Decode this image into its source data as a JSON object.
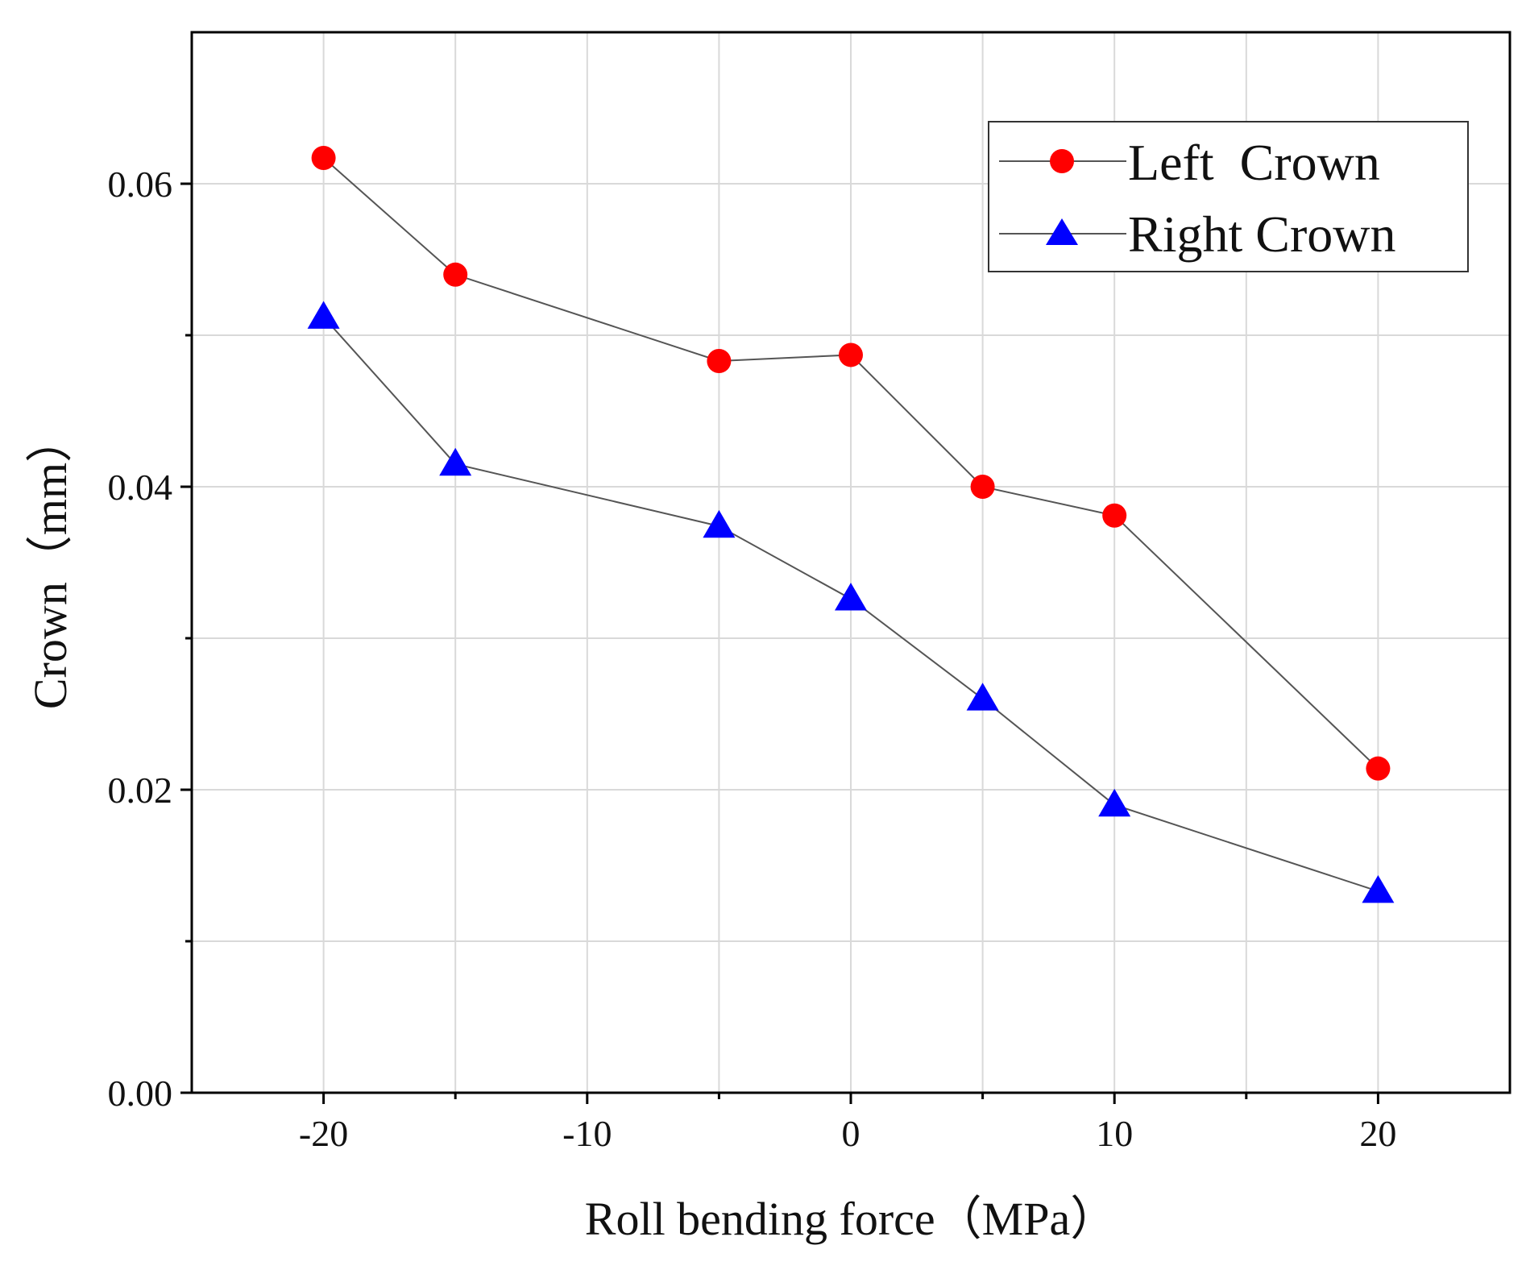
{
  "chart_data": {
    "type": "line",
    "xlabel": "Roll bending force（MPa）",
    "ylabel": "Crown（mm）",
    "xlim": [
      -25,
      25
    ],
    "ylim": [
      0,
      0.07
    ],
    "xticks": [
      -20,
      -10,
      0,
      10,
      20
    ],
    "xtick_labels": [
      "-20",
      "-10",
      "0",
      "10",
      "20"
    ],
    "xminor": [
      -15,
      -5,
      5,
      15
    ],
    "yticks": [
      0,
      0.02,
      0.04,
      0.06
    ],
    "ytick_labels": [
      "0.00",
      "0.02",
      "0.04",
      "0.06"
    ],
    "yminor": [
      0.01,
      0.03,
      0.05
    ],
    "grid": true,
    "legend_position": "top-right",
    "series": [
      {
        "name": "Left  Crown",
        "marker": "circle",
        "color": "#ff0000",
        "x": [
          -20,
          -15,
          -5,
          0,
          5,
          10,
          20
        ],
        "y": [
          0.0617,
          0.054,
          0.0483,
          0.0487,
          0.04,
          0.0381,
          0.0214
        ]
      },
      {
        "name": "Right Crown",
        "marker": "triangle",
        "color": "#0000ff",
        "x": [
          -20,
          -15,
          -5,
          0,
          5,
          10,
          20
        ],
        "y": [
          0.0512,
          0.0415,
          0.0374,
          0.0326,
          0.026,
          0.019,
          0.0133
        ]
      }
    ],
    "line_color": "#555555"
  }
}
